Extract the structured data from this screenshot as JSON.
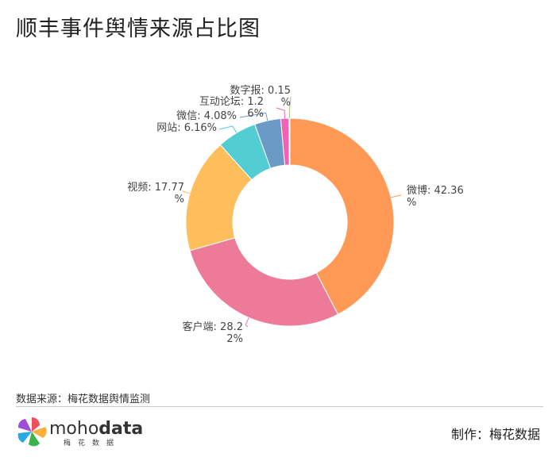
{
  "title": "顺丰事件舆情来源占比图",
  "source_label": "数据来源：梅花数据舆情监测",
  "maker_label": "制作：梅花数据",
  "logo": {
    "name_light": "moho",
    "name_bold": "data",
    "subtitle": "梅花数据"
  },
  "chart_data": {
    "type": "pie",
    "donut": true,
    "slices": [
      {
        "label": "微博",
        "value": 42.36,
        "text_lines": [
          "微博: 42.36",
          "%"
        ],
        "color": "#ff9a56"
      },
      {
        "label": "客户端",
        "value": 28.22,
        "text_lines": [
          "客户端: 28.2",
          "2%"
        ],
        "color": "#ee7a9a"
      },
      {
        "label": "视频",
        "value": 17.77,
        "text_lines": [
          "视频: 17.77",
          "%"
        ],
        "color": "#ffbe5c"
      },
      {
        "label": "网站",
        "value": 6.16,
        "text_lines": [
          "网站: 6.16%"
        ],
        "color": "#52ced3"
      },
      {
        "label": "微信",
        "value": 4.08,
        "text_lines": [
          "微信: 4.08%"
        ],
        "color": "#6b9ac6"
      },
      {
        "label": "互动论坛",
        "value": 1.26,
        "text_lines": [
          "互动论坛: 1.2",
          "6%"
        ],
        "color": "#f261b6"
      },
      {
        "label": "数字报",
        "value": 0.15,
        "text_lines": [
          "数字报: 0.15",
          "%"
        ],
        "color": "#a0c878"
      }
    ]
  }
}
